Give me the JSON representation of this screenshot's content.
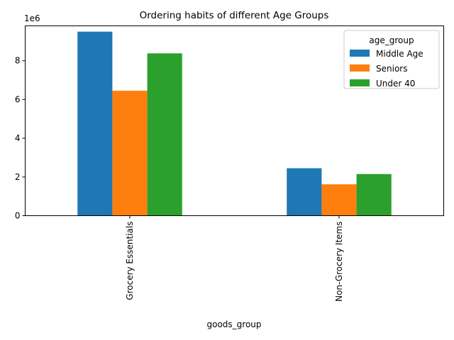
{
  "chart_data": {
    "type": "bar",
    "title": "Ordering habits of different Age Groups",
    "xlabel": "goods_group",
    "ylabel": "",
    "categories": [
      "Grocery Essentials",
      "Non-Grocery Items"
    ],
    "series": [
      {
        "name": "Middle Age",
        "values": [
          9500000,
          2450000
        ],
        "color": "#1f77b4"
      },
      {
        "name": "Seniors",
        "values": [
          6450000,
          1620000
        ],
        "color": "#ff7f0e"
      },
      {
        "name": "Under 40",
        "values": [
          8380000,
          2150000
        ],
        "color": "#2ca02c"
      }
    ],
    "ylim": [
      0,
      9800000
    ],
    "yticks": [
      0,
      2,
      4,
      6,
      8
    ],
    "y_multiplier_label": "1e6",
    "legend_title": "age_group",
    "legend_position": "top-right",
    "grid": false
  }
}
